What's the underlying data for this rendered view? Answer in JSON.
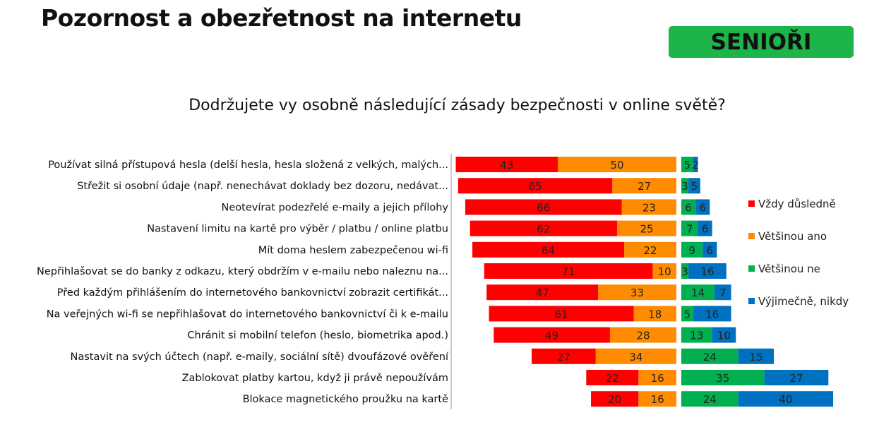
{
  "header": {
    "title": "Pozornost a obezřetnost na internetu",
    "badge": "SENIOŘI"
  },
  "chart_data": {
    "type": "bar",
    "stacked": "diverging",
    "title": "Dodržujete vy osobně následující zásady bezpečnosti v online světě?",
    "legend_position": "right",
    "categories": [
      "Používat silná přístupová hesla (delší hesla, hesla složená z velkých, malých...",
      "Střežit si osobní údaje (např. nenechávat doklady bez dozoru, nedávat...",
      "Neotevírat podezřelé e-maily a jejich přílohy",
      "Nastavení limitu na kartě pro výběr / platbu / online platbu",
      "Mít doma heslem zabezpečenou wi-fi",
      "Nepřihlašovat se do banky z odkazu, který obdržím v e-mailu nebo naleznu na...",
      "Před každým přihlášením do internetového bankovnictví zobrazit certifikát...",
      "Na veřejných wi-fi se nepřihlašovat do internetového bankovnictví či k e-mailu",
      "Chránit si mobilní telefon (heslo, biometrika apod.)",
      "Nastavit na svých účtech (např. e-maily, sociální sítě) dvoufázové ověření",
      "Zablokovat platby kartou, když ji právě nepoužívám",
      "Blokace magnetického proužku na kartě"
    ],
    "series": [
      {
        "name": "Vždy důsledně",
        "color": "#ff0000",
        "side": "left",
        "values": [
          43,
          65,
          66,
          62,
          64,
          71,
          47,
          61,
          49,
          27,
          22,
          20
        ]
      },
      {
        "name": "Většinou ano",
        "color": "#ff8c00",
        "side": "left",
        "values": [
          50,
          27,
          23,
          25,
          22,
          10,
          33,
          18,
          28,
          34,
          16,
          16
        ]
      },
      {
        "name": "Většinou ne",
        "color": "#00b050",
        "side": "right",
        "values": [
          5,
          3,
          6,
          7,
          9,
          3,
          14,
          5,
          13,
          24,
          35,
          24
        ]
      },
      {
        "name": "Výjimečně, nikdy",
        "color": "#0070c0",
        "side": "right",
        "values": [
          2,
          5,
          6,
          6,
          6,
          16,
          7,
          16,
          10,
          15,
          27,
          40
        ]
      }
    ]
  }
}
